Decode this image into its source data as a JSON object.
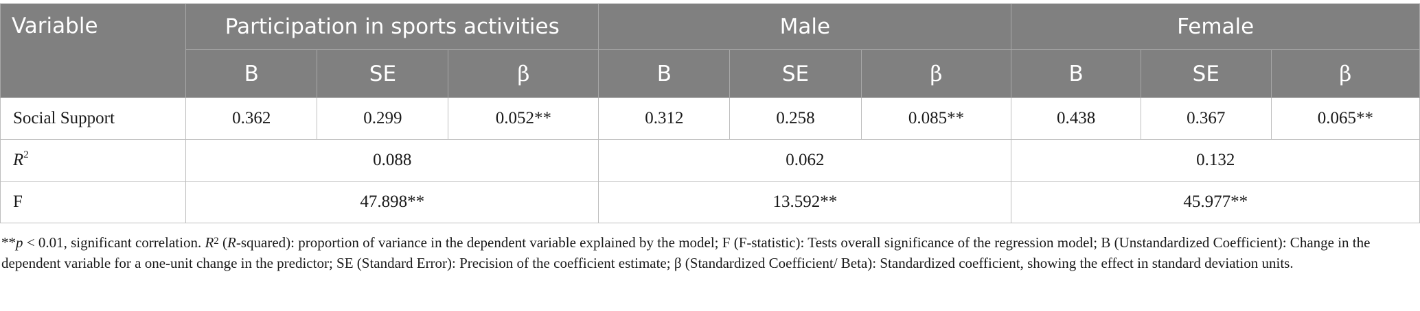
{
  "table": {
    "variable_header": "Variable",
    "groups": [
      "Participation in sports activities",
      "Male",
      "Female"
    ],
    "stat_headers": [
      "B",
      "SE",
      "β"
    ],
    "rows": {
      "social_support": {
        "label": "Social Support",
        "participation": {
          "b": "0.362",
          "se": "0.299",
          "beta": "0.052**"
        },
        "male": {
          "b": "0.312",
          "se": "0.258",
          "beta": "0.085**"
        },
        "female": {
          "b": "0.438",
          "se": "0.367",
          "beta": "0.065**"
        }
      },
      "r_squared": {
        "label_base": "R",
        "label_sup": "2",
        "participation": "0.088",
        "male": "0.062",
        "female": "0.132"
      },
      "f_statistic": {
        "label": "F",
        "participation": "47.898**",
        "male": "13.592**",
        "female": "45.977**"
      }
    }
  },
  "note": {
    "stars": "**",
    "p_symbol": "p",
    "p_text": " < 0.01, significant correlation. ",
    "r_base": "R",
    "r_sup": "2",
    "r_paren_open": " (",
    "r_paren_italic": "R",
    "rest": "-squared): proportion of variance in the dependent variable explained by the model; F (F-statistic): Tests overall significance of the regression model; B (Unstandardized Coefficient): Change in the dependent variable for a one-unit change in the predictor; SE (Standard Error): Precision of the coefficient estimate; β (Standardized Coefficient/ Beta): Standardized coefficient, showing the effect in standard deviation units."
  }
}
